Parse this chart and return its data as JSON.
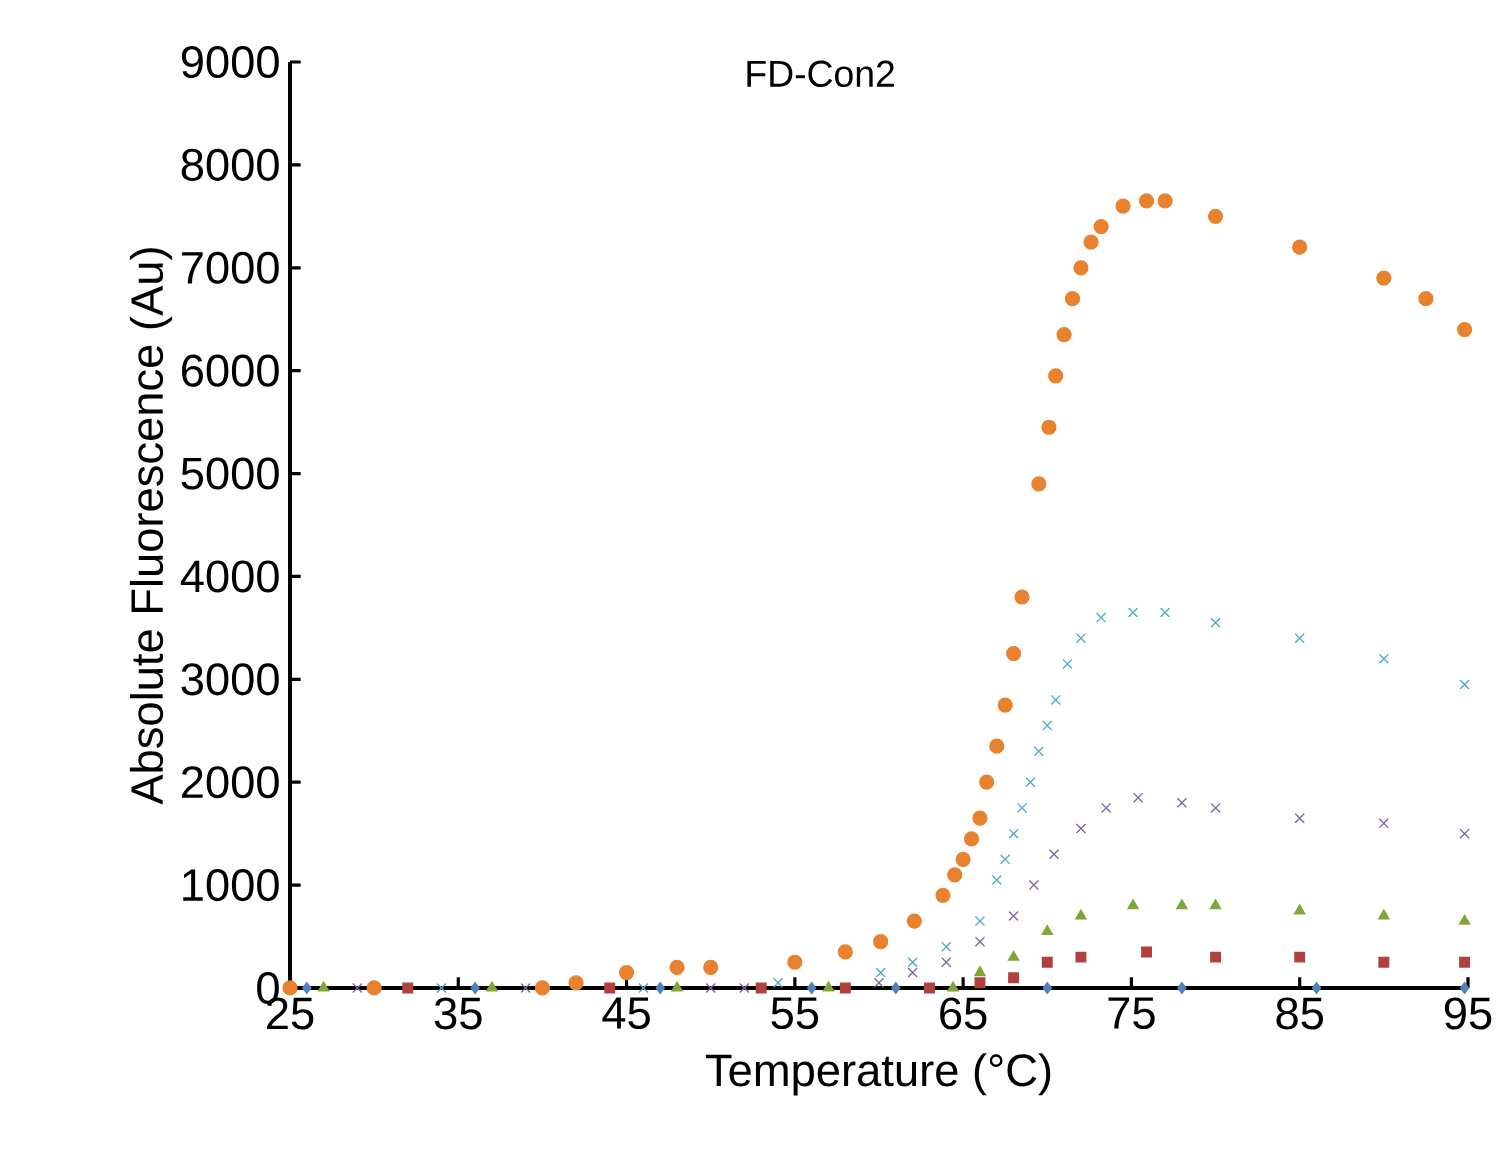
{
  "chart_data": {
    "type": "scatter",
    "title": "FD-Con2",
    "xlabel": "Temperature (°C)",
    "ylabel": "Absolute Fluorescence (Au)",
    "xlim": [
      25,
      95
    ],
    "ylim": [
      0,
      9000
    ],
    "xticks": [
      25,
      35,
      45,
      55,
      65,
      75,
      85,
      95
    ],
    "yticks": [
      0,
      1000,
      2000,
      3000,
      4000,
      5000,
      6000,
      7000,
      8000,
      9000
    ],
    "grid": false,
    "series": [
      {
        "color": "#b0413e",
        "marker": "square",
        "x": [
          32,
          44,
          53,
          58,
          63,
          66,
          68,
          70,
          72,
          75.9,
          80,
          85,
          90,
          94.8
        ],
        "values": [
          0,
          0,
          0,
          0,
          0,
          50,
          100,
          250,
          300,
          350,
          300,
          300,
          250,
          250
        ]
      },
      {
        "color": "#7fa63a",
        "marker": "triangle",
        "x": [
          27,
          37,
          48,
          57,
          64.4,
          66,
          68,
          70,
          72,
          75.1,
          78,
          80,
          85,
          90,
          94.8
        ],
        "values": [
          0,
          0,
          0,
          0,
          0,
          150,
          300,
          550,
          700,
          800,
          800,
          800,
          750,
          700,
          650
        ]
      },
      {
        "color": "#8064a2",
        "marker": "cross",
        "x": [
          29,
          39,
          50,
          52,
          60,
          62,
          64,
          66,
          68,
          69.2,
          70.4,
          72,
          73.5,
          75.4,
          78,
          80,
          85,
          90,
          94.8
        ],
        "values": [
          0,
          0,
          0,
          0,
          50,
          150,
          250,
          450,
          700,
          1000,
          1300,
          1550,
          1750,
          1850,
          1800,
          1750,
          1650,
          1600,
          1500
        ]
      },
      {
        "color": "#4bacc6",
        "marker": "cross",
        "x": [
          34,
          46,
          54,
          60.1,
          62,
          64,
          66,
          67,
          67.5,
          68,
          68.5,
          69,
          69.5,
          70,
          70.5,
          71.2,
          72,
          73.2,
          75.1,
          77,
          80,
          85,
          90,
          94.8
        ],
        "values": [
          0,
          0,
          50,
          150,
          250,
          400,
          650,
          1050,
          1250,
          1500,
          1750,
          2000,
          2300,
          2550,
          2800,
          3150,
          3400,
          3600,
          3650,
          3650,
          3550,
          3400,
          3200,
          2950
        ]
      },
      {
        "color": "#e8822f",
        "marker": "circle",
        "x": [
          25,
          30,
          40,
          42,
          45,
          48,
          50,
          55,
          58,
          60.1,
          62.1,
          63.8,
          64.5,
          65,
          65.5,
          66,
          66.4,
          67,
          67.5,
          68,
          68.5,
          69.5,
          70.1,
          70.5,
          71,
          71.5,
          72,
          72.6,
          73.2,
          74.5,
          75.9,
          77,
          80,
          85,
          90,
          92.5,
          94.8
        ],
        "values": [
          0,
          0,
          0,
          50,
          150,
          200,
          200,
          250,
          350,
          450,
          650,
          900,
          1100,
          1250,
          1450,
          1650,
          2000,
          2350,
          2750,
          3250,
          3800,
          4900,
          5450,
          5950,
          6350,
          6700,
          7000,
          7250,
          7400,
          7600,
          7650,
          7650,
          7500,
          7200,
          6900,
          6700,
          6400
        ]
      },
      {
        "color": "#4f81bd",
        "marker": "diamond",
        "x": [
          26,
          36,
          47,
          56,
          61,
          70,
          78,
          86,
          94.8
        ],
        "values": [
          0,
          0,
          0,
          0,
          0,
          0,
          0,
          0,
          0
        ]
      }
    ]
  }
}
